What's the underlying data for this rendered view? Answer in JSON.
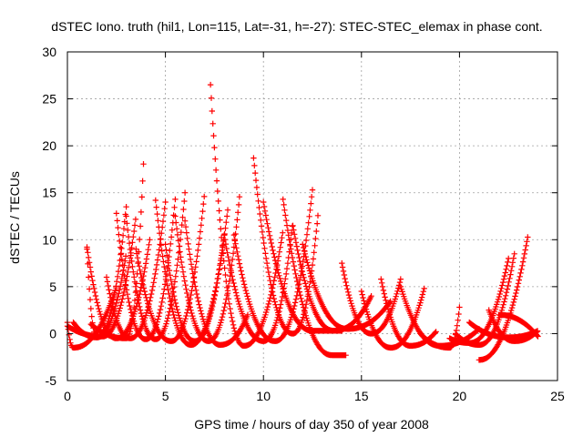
{
  "chart_data": {
    "type": "scatter",
    "title": "dSTEC Iono. truth (hil1, Lon=115, Lat=-31, h=-27): STEC-STEC_elemax in phase cont.",
    "xlabel": "GPS time / hours of day 350 of year 2008",
    "ylabel": "dSTEC  / TECUs",
    "xlim": [
      0,
      25
    ],
    "ylim": [
      -5,
      30
    ],
    "xticks": [
      0,
      5,
      10,
      15,
      20,
      25
    ],
    "yticks": [
      -5,
      0,
      5,
      10,
      15,
      20,
      25,
      30
    ],
    "grid": true,
    "marker": "plus",
    "color": "#ff0000",
    "arcs": [
      {
        "t0": 0.0,
        "t1": 2.5,
        "tmin": 0.3,
        "vmin": -1.5,
        "v0": 1.2,
        "v1": 5.0
      },
      {
        "t0": 0.0,
        "t1": 3.5,
        "tmin": 1.8,
        "vmin": -0.3,
        "v0": 0.8,
        "v1": 12.5
      },
      {
        "t0": 0.3,
        "t1": 3.0,
        "tmin": 1.5,
        "vmin": -0.4,
        "v0": 1.2,
        "v1": 8.5
      },
      {
        "t0": 1.0,
        "t1": 4.2,
        "tmin": 2.5,
        "vmin": -0.5,
        "v0": 9.2,
        "v1": 10.0
      },
      {
        "t0": 1.0,
        "t1": 3.0,
        "tmin": 1.5,
        "vmin": -0.4,
        "v0": 9.0,
        "v1": 13.5
      },
      {
        "t0": 1.2,
        "t1": 3.9,
        "tmin": 3.0,
        "vmin": -0.5,
        "v0": 1.0,
        "v1": 19.0
      },
      {
        "t0": 2.0,
        "t1": 5.0,
        "tmin": 3.2,
        "vmin": -0.5,
        "v0": 6.0,
        "v1": 14.0
      },
      {
        "t0": 2.5,
        "t1": 5.5,
        "tmin": 4.0,
        "vmin": -0.6,
        "v0": 12.8,
        "v1": 14.3
      },
      {
        "t0": 3.0,
        "t1": 6.0,
        "tmin": 4.5,
        "vmin": -0.6,
        "v0": 12.5,
        "v1": 15.0
      },
      {
        "t0": 3.5,
        "t1": 7.0,
        "tmin": 5.3,
        "vmin": -0.8,
        "v0": 9.0,
        "v1": 15.0
      },
      {
        "t0": 4.5,
        "t1": 8.2,
        "tmin": 6.3,
        "vmin": -1.2,
        "v0": 14.2,
        "v1": 13.5
      },
      {
        "t0": 5.0,
        "t1": 8.0,
        "tmin": 6.5,
        "vmin": -0.8,
        "v0": 9.5,
        "v1": 10.5
      },
      {
        "t0": 5.5,
        "t1": 8.8,
        "tmin": 7.2,
        "vmin": -0.8,
        "v0": 12.5,
        "v1": 15.0
      },
      {
        "t0": 6.0,
        "t1": 9.2,
        "tmin": 7.8,
        "vmin": -1.2,
        "v0": 12.0,
        "v1": 2.0
      },
      {
        "t0": 7.3,
        "t1": 11.0,
        "tmin": 9.0,
        "vmin": -1.3,
        "v0": 26.5,
        "v1": 11.0
      },
      {
        "t0": 8.0,
        "t1": 11.5,
        "tmin": 10.0,
        "vmin": -0.8,
        "v0": 10.5,
        "v1": 11.8
      },
      {
        "t0": 8.5,
        "t1": 12.5,
        "tmin": 10.6,
        "vmin": -0.8,
        "v0": 10.5,
        "v1": 15.3
      },
      {
        "t0": 9.5,
        "t1": 12.8,
        "tmin": 11.5,
        "vmin": 0.0,
        "v0": 18.7,
        "v1": 13.0
      },
      {
        "t0": 10.0,
        "t1": 14.0,
        "tmin": 12.5,
        "vmin": 0.3,
        "v0": 14.0,
        "v1": 0.3
      },
      {
        "t0": 11.0,
        "t1": 14.2,
        "tmin": 13.5,
        "vmin": -2.3,
        "v0": 14.3,
        "v1": -2.3
      },
      {
        "t0": 11.5,
        "t1": 15.5,
        "tmin": 13.6,
        "vmin": 0.3,
        "v0": 11.5,
        "v1": 4.0
      },
      {
        "t0": 12.0,
        "t1": 16.5,
        "tmin": 14.3,
        "vmin": 0.5,
        "v0": 9.5,
        "v1": 3.5
      },
      {
        "t0": 14.0,
        "t1": 17.0,
        "tmin": 15.5,
        "vmin": 0.0,
        "v0": 7.5,
        "v1": 5.8
      },
      {
        "t0": 15.0,
        "t1": 18.2,
        "tmin": 16.5,
        "vmin": -1.5,
        "v0": 4.5,
        "v1": 4.8
      },
      {
        "t0": 16.0,
        "t1": 18.8,
        "tmin": 17.5,
        "vmin": -1.3,
        "v0": 5.8,
        "v1": 0.2
      },
      {
        "t0": 17.0,
        "t1": 21.0,
        "tmin": 19.0,
        "vmin": -1.3,
        "v0": 5.0,
        "v1": 0.5
      },
      {
        "t0": 18.0,
        "t1": 20.0,
        "tmin": 19.5,
        "vmin": -1.5,
        "v0": 0.0,
        "v1": 2.8
      },
      {
        "t0": 19.5,
        "t1": 22.5,
        "tmin": 20.5,
        "vmin": -1.0,
        "v0": -0.5,
        "v1": 8.0
      },
      {
        "t0": 19.8,
        "t1": 22.8,
        "tmin": 21.0,
        "vmin": -1.2,
        "v0": 0.0,
        "v1": 8.5
      },
      {
        "t0": 20.5,
        "t1": 24.0,
        "tmin": 22.5,
        "vmin": -0.4,
        "v0": 1.2,
        "v1": 0.3
      },
      {
        "t0": 21.0,
        "t1": 23.5,
        "tmin": 21.0,
        "vmin": -2.8,
        "v0": -2.8,
        "v1": 10.5
      },
      {
        "t0": 21.5,
        "t1": 24.0,
        "tmin": 22.8,
        "vmin": -0.8,
        "v0": 2.5,
        "v1": 0.3
      },
      {
        "t0": 22.0,
        "t1": 24.0,
        "tmin": 22.0,
        "vmin": 2.0,
        "v0": 2.0,
        "v1": -0.3
      }
    ]
  }
}
